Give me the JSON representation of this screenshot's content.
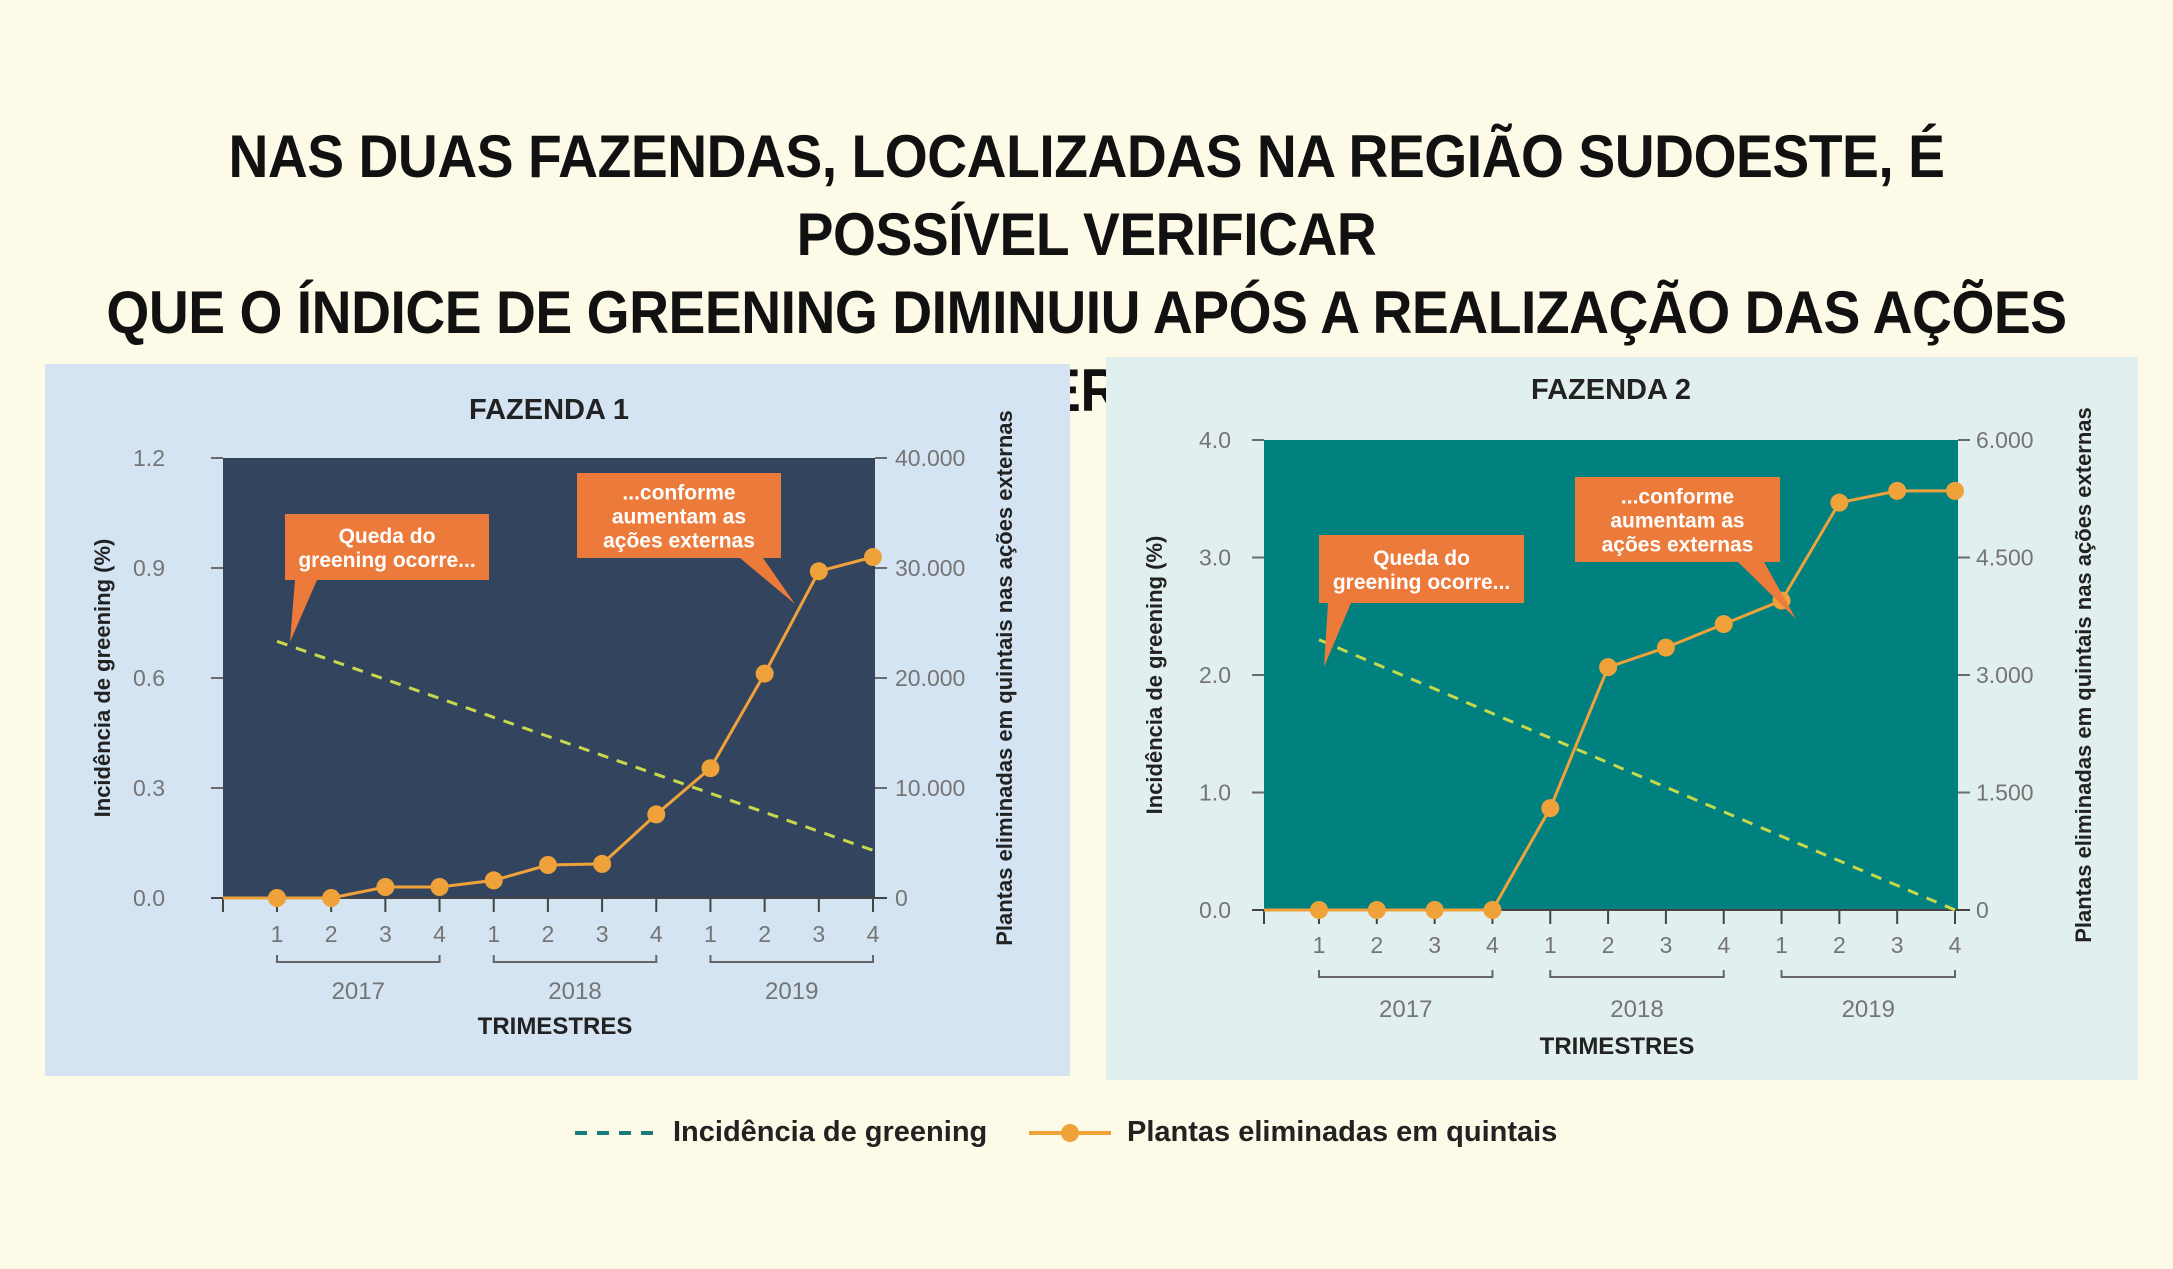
{
  "headline": {
    "line1": "NAS DUAS FAZENDAS, LOCALIZADAS NA REGIÃO SUDOESTE, É POSSÍVEL VERIFICAR",
    "line2": "QUE O ÍNDICE DE GREENING DIMINUIU APÓS A REALIZAÇÃO DAS AÇÕES EXTERNAS"
  },
  "colors": {
    "background": "#fdfbe8",
    "panel1_bg": "#d4e4f3",
    "panel2_bg": "#e1f0ee",
    "plot1_bg": "#33455e",
    "plot2_bg": "#00807f",
    "orange": "#f0a23a",
    "callout": "#ec7a3a",
    "greening_line": "#c6d94a",
    "legend_dash": "#1a7c7a",
    "axis_text": "#757575"
  },
  "legend": {
    "greening": "Incidência de greening",
    "plantas": "Plantas eliminadas em quintais"
  },
  "chart_data": [
    {
      "type": "line",
      "title": "FAZENDA 1",
      "xlabel": "TRIMESTRES",
      "ylabel_left": "Incidência de greening (%)",
      "ylabel_right": "Plantas eliminadas em quintais nas ações externas",
      "quarter_labels": [
        "1",
        "2",
        "3",
        "4",
        "1",
        "2",
        "3",
        "4",
        "1",
        "2",
        "3",
        "4"
      ],
      "year_labels": [
        "2017",
        "2018",
        "2019"
      ],
      "ylim_left": [
        0,
        1.2
      ],
      "yticks_left": [
        "0.0",
        "0.3",
        "0.6",
        "0.9",
        "1.2"
      ],
      "ylim_right": [
        0,
        40000
      ],
      "yticks_right": [
        "0",
        "10.000",
        "20.000",
        "30.000",
        "40.000"
      ],
      "series": [
        {
          "name": "Incidência de greening",
          "axis": "left",
          "style": "dashed",
          "x": [
            1,
            12
          ],
          "values": [
            0.7,
            0.13
          ]
        },
        {
          "name": "Plantas eliminadas em quintais",
          "axis": "right",
          "style": "line-markers",
          "x": [
            1,
            2,
            3,
            4,
            5,
            6,
            7,
            8,
            9,
            10,
            11,
            12
          ],
          "values": [
            0,
            0,
            1000,
            1000,
            1600,
            3000,
            3100,
            7600,
            11800,
            20400,
            29700,
            31000
          ]
        }
      ],
      "annotations": [
        {
          "text_lines": [
            "Queda do",
            "greening ocorre..."
          ]
        },
        {
          "text_lines": [
            "...conforme",
            "aumentam as",
            "ações externas"
          ]
        }
      ]
    },
    {
      "type": "line",
      "title": "FAZENDA 2",
      "xlabel": "TRIMESTRES",
      "ylabel_left": "Incidência de greening (%)",
      "ylabel_right": "Plantas eliminadas em quintais nas ações externas",
      "quarter_labels": [
        "1",
        "2",
        "3",
        "4",
        "1",
        "2",
        "3",
        "4",
        "1",
        "2",
        "3",
        "4"
      ],
      "year_labels": [
        "2017",
        "2018",
        "2019"
      ],
      "ylim_left": [
        0,
        4.0
      ],
      "yticks_left": [
        "0.0",
        "1.0",
        "2.0",
        "3.0",
        "4.0"
      ],
      "ylim_right": [
        0,
        6000
      ],
      "yticks_right": [
        "0",
        "1.500",
        "3.000",
        "4.500",
        "6.000"
      ],
      "series": [
        {
          "name": "Incidência de greening",
          "axis": "left",
          "style": "dashed",
          "x": [
            1,
            12
          ],
          "values": [
            2.3,
            0
          ]
        },
        {
          "name": "Plantas eliminadas em quintais",
          "axis": "right",
          "style": "line-markers",
          "x": [
            1,
            2,
            3,
            4,
            5,
            6,
            7,
            8,
            9,
            10,
            11,
            12
          ],
          "values": [
            0,
            0,
            0,
            0,
            1300,
            3100,
            3350,
            3650,
            3950,
            5200,
            5350,
            5350
          ]
        }
      ],
      "annotations": [
        {
          "text_lines": [
            "Queda do",
            "greening ocorre..."
          ]
        },
        {
          "text_lines": [
            "...conforme",
            "aumentam as",
            "ações externas"
          ]
        }
      ]
    }
  ]
}
